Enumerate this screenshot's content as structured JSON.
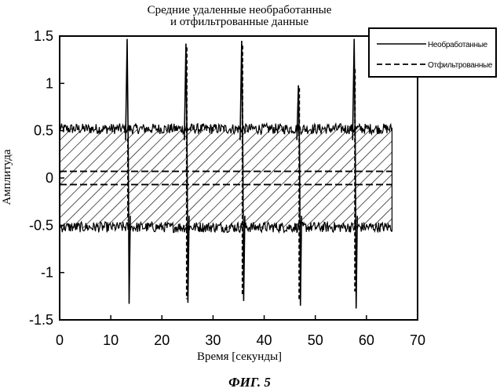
{
  "figure_caption": "ФИГ. 5",
  "chart_data": {
    "type": "line",
    "title": [
      "Средние удаленные необработанные",
      "и отфильтрованные данные"
    ],
    "xlabel": "Время [секунды]",
    "ylabel": "Амплитуда",
    "xlim": [
      0,
      70
    ],
    "ylim": [
      -1.5,
      1.5
    ],
    "xticks": [
      0,
      10,
      20,
      30,
      40,
      50,
      60,
      70
    ],
    "xtick_labels": [
      "0",
      "10",
      "20",
      "30",
      "40",
      "50",
      "60",
      "70"
    ],
    "yticks": [
      1.5,
      1,
      0.5,
      0,
      -0.5,
      -1,
      -1.5
    ],
    "ytick_labels": [
      "1.5",
      "1",
      "0.5",
      "0",
      "-0.5",
      "-1",
      "-1.5"
    ],
    "grid": false,
    "legend_position": "top-right",
    "series": [
      {
        "name": "Необработанные",
        "style": "solid",
        "color": "#000000",
        "x_range": [
          0,
          65
        ],
        "band": {
          "upper": 0.52,
          "lower": -0.52,
          "noise": 0.07
        },
        "spikes": [
          {
            "x": 13.2,
            "max": 1.47,
            "min": -1.33
          },
          {
            "x": 24.7,
            "max": 1.42,
            "min": -1.32
          },
          {
            "x": 35.6,
            "max": 1.45,
            "min": -1.3
          },
          {
            "x": 46.7,
            "max": 0.98,
            "min": -1.35
          },
          {
            "x": 57.6,
            "max": 1.47,
            "min": -1.38
          }
        ]
      },
      {
        "name": "Отфильтрованные",
        "style": "dashed",
        "color": "#000000",
        "x_range": [
          0,
          65
        ],
        "band": {
          "upper": 0.07,
          "lower": -0.07
        },
        "spikes": [
          {
            "x": 13.2,
            "max": 0.42,
            "min": -0.45
          },
          {
            "x": 24.7,
            "max": 1.38,
            "min": -1.28
          },
          {
            "x": 35.6,
            "max": 1.4,
            "min": -1.25
          },
          {
            "x": 46.7,
            "max": 0.95,
            "min": -1.3
          },
          {
            "x": 57.6,
            "max": 1.15,
            "min": -1.2
          }
        ]
      }
    ]
  }
}
